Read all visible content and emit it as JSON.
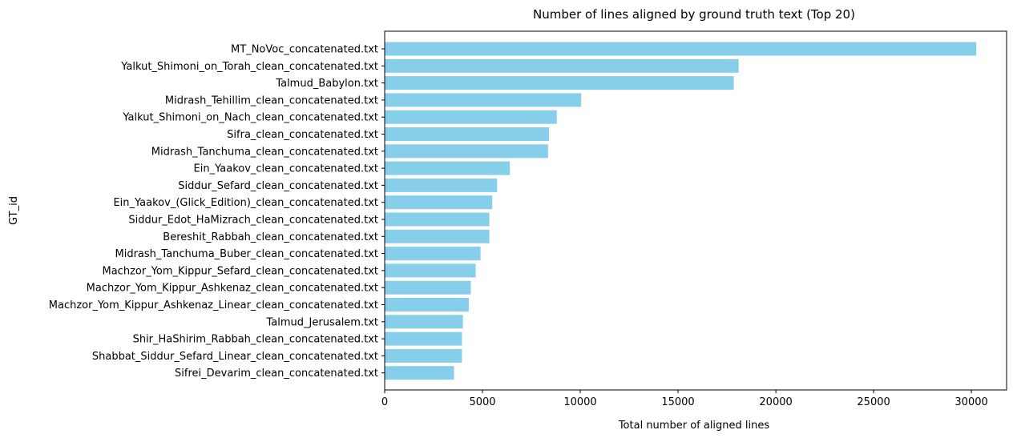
{
  "chart_data": {
    "type": "bar",
    "orientation": "horizontal",
    "title": "Number of lines aligned by ground truth text (Top 20)",
    "xlabel": "Total number of aligned lines",
    "ylabel": "GT_id",
    "xlim": [
      0,
      31800
    ],
    "xticks": [
      0,
      5000,
      10000,
      15000,
      20000,
      25000,
      30000
    ],
    "grid": false,
    "bar_color": "#87CEEB",
    "categories": [
      "MT_NoVoc_concatenated.txt",
      "Yalkut_Shimoni_on_Torah_clean_concatenated.txt",
      "Talmud_Babylon.txt",
      "Midrash_Tehillim_clean_concatenated.txt",
      "Yalkut_Shimoni_on_Nach_clean_concatenated.txt",
      "Sifra_clean_concatenated.txt",
      "Midrash_Tanchuma_clean_concatenated.txt",
      "Ein_Yaakov_clean_concatenated.txt",
      "Siddur_Sefard_clean_concatenated.txt",
      "Ein_Yaakov_(Glick_Edition)_clean_concatenated.txt",
      "Siddur_Edot_HaMizrach_clean_concatenated.txt",
      "Bereshit_Rabbah_clean_concatenated.txt",
      "Midrash_Tanchuma_Buber_clean_concatenated.txt",
      "Machzor_Yom_Kippur_Sefard_clean_concatenated.txt",
      "Machzor_Yom_Kippur_Ashkenaz_clean_concatenated.txt",
      "Machzor_Yom_Kippur_Ashkenaz_Linear_clean_concatenated.txt",
      "Talmud_Jerusalem.txt",
      "Shir_HaShirim_Rabbah_clean_concatenated.txt",
      "Shabbat_Siddur_Sefard_Linear_clean_concatenated.txt",
      "Sifrei_Devarim_clean_concatenated.txt"
    ],
    "values": [
      30250,
      18100,
      17850,
      10050,
      8800,
      8400,
      8350,
      6400,
      5750,
      5500,
      5350,
      5350,
      4900,
      4650,
      4400,
      4300,
      4000,
      3950,
      3950,
      3550
    ]
  }
}
